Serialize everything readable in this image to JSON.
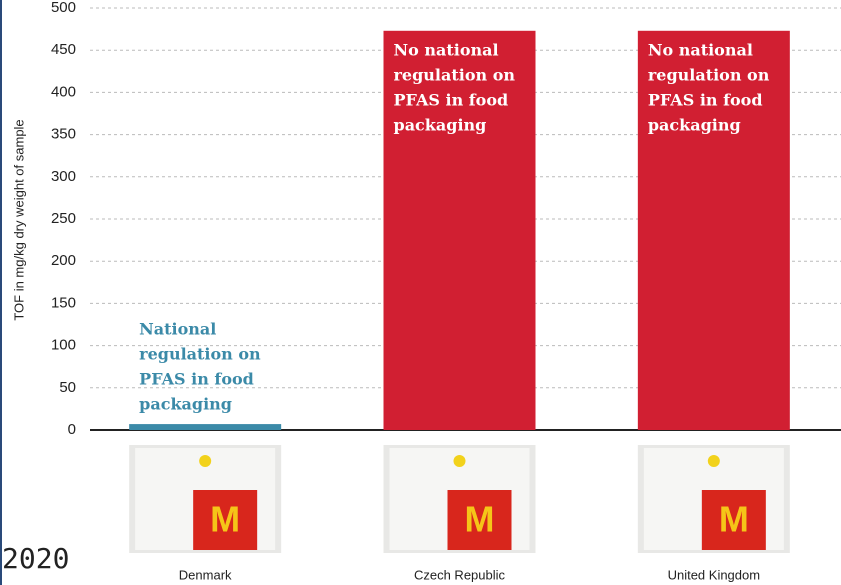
{
  "chart_data": {
    "type": "bar",
    "y_label": "TOF in mg/kg dry weight of sample",
    "categories": [
      "Denmark",
      "Czech Republic",
      "United Kingdom"
    ],
    "values": [
      7,
      473,
      473
    ],
    "colors": [
      "#3b8aa8",
      "#d11f32",
      "#d11f32"
    ],
    "annotations": [
      [
        "National",
        "regulation on",
        "PFAS in food",
        "packaging"
      ],
      [
        "No national",
        "regulation on",
        "PFAS in food",
        "packaging"
      ],
      [
        "No national",
        "regulation on",
        "PFAS in food",
        "packaging"
      ]
    ],
    "ylim": [
      0,
      500
    ],
    "yticks": [
      0,
      50,
      100,
      150,
      200,
      250,
      300,
      350,
      400,
      450,
      500
    ],
    "grid": true,
    "footnote": "2020"
  }
}
